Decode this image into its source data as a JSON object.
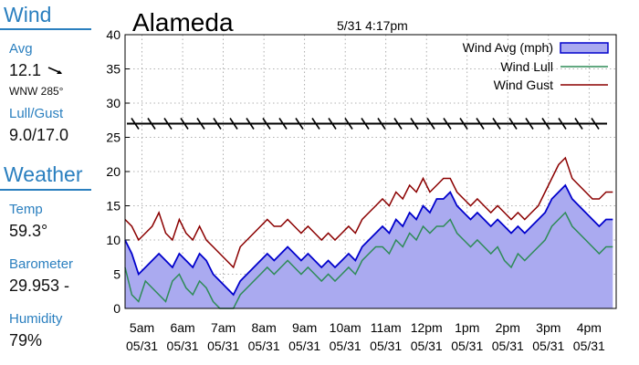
{
  "sidebar": {
    "wind_title": "Wind",
    "avg_label": "Avg",
    "avg_value": "12.1",
    "direction": "WNW 285°",
    "lullgust_label": "Lull/Gust",
    "lullgust_value": "9.0/17.0",
    "weather_title": "Weather",
    "temp_label": "Temp",
    "temp_value": "59.3°",
    "baro_label": "Barometer",
    "baro_value": "29.953 -",
    "humidity_label": "Humidity",
    "humidity_value": "79%"
  },
  "chart_data": {
    "type": "area",
    "title": "Alameda",
    "subtitle": "5/31 4:17pm",
    "xlabel": "",
    "ylabel": "",
    "ylim": [
      0,
      40
    ],
    "yticks": [
      0,
      5,
      10,
      15,
      20,
      25,
      30,
      35,
      40
    ],
    "x_range": [
      "4:35am",
      "4:40pm"
    ],
    "grid": true,
    "legend_position": "top-right",
    "x_ticks": [
      {
        "time": "5am",
        "date": "05/31"
      },
      {
        "time": "6am",
        "date": "05/31"
      },
      {
        "time": "7am",
        "date": "05/31"
      },
      {
        "time": "8am",
        "date": "05/31"
      },
      {
        "time": "9am",
        "date": "05/31"
      },
      {
        "time": "10am",
        "date": "05/31"
      },
      {
        "time": "11am",
        "date": "05/31"
      },
      {
        "time": "12pm",
        "date": "05/31"
      },
      {
        "time": "1pm",
        "date": "05/31"
      },
      {
        "time": "2pm",
        "date": "05/31"
      },
      {
        "time": "3pm",
        "date": "05/31"
      },
      {
        "time": "4pm",
        "date": "05/31"
      }
    ],
    "x_times": [
      "4:35am",
      "4:45am",
      "4:55am",
      "5:05am",
      "5:15am",
      "5:25am",
      "5:35am",
      "5:45am",
      "5:55am",
      "6:05am",
      "6:15am",
      "6:25am",
      "6:35am",
      "6:45am",
      "6:55am",
      "7:05am",
      "7:15am",
      "7:25am",
      "7:35am",
      "7:45am",
      "7:55am",
      "8:05am",
      "8:15am",
      "8:25am",
      "8:35am",
      "8:45am",
      "8:55am",
      "9:05am",
      "9:15am",
      "9:25am",
      "9:35am",
      "9:45am",
      "9:55am",
      "10:05am",
      "10:15am",
      "10:25am",
      "10:35am",
      "10:45am",
      "10:55am",
      "11:05am",
      "11:15am",
      "11:25am",
      "11:35am",
      "11:45am",
      "11:55am",
      "12:05pm",
      "12:15pm",
      "12:25pm",
      "12:35pm",
      "12:45pm",
      "12:55pm",
      "1:05pm",
      "1:15pm",
      "1:25pm",
      "1:35pm",
      "1:45pm",
      "1:55pm",
      "2:05pm",
      "2:15pm",
      "2:25pm",
      "2:35pm",
      "2:45pm",
      "2:55pm",
      "3:05pm",
      "3:15pm",
      "3:25pm",
      "3:35pm",
      "3:45pm",
      "3:55pm",
      "4:05pm",
      "4:15pm",
      "4:25pm",
      "4:35pm"
    ],
    "series": [
      {
        "name": "Wind Avg (mph)",
        "kind": "area",
        "color": "#0000cc",
        "fill": "#aaaaf0",
        "values": [
          10,
          8,
          5,
          6,
          7,
          8,
          7,
          6,
          8,
          7,
          6,
          8,
          7,
          5,
          4,
          3,
          2,
          4,
          5,
          6,
          7,
          8,
          7,
          8,
          9,
          8,
          7,
          8,
          7,
          6,
          7,
          6,
          7,
          8,
          7,
          9,
          10,
          11,
          12,
          11,
          13,
          12,
          14,
          13,
          15,
          14,
          16,
          16,
          17,
          15,
          14,
          13,
          14,
          13,
          12,
          13,
          12,
          11,
          12,
          11,
          12,
          13,
          14,
          16,
          17,
          18,
          16,
          15,
          14,
          13,
          12,
          13,
          13
        ]
      },
      {
        "name": "Wind Lull",
        "kind": "line",
        "color": "#2e8b57",
        "values": [
          6,
          2,
          1,
          4,
          3,
          2,
          1,
          4,
          5,
          3,
          2,
          4,
          3,
          1,
          0,
          0,
          0,
          2,
          3,
          4,
          5,
          6,
          5,
          6,
          7,
          6,
          5,
          6,
          5,
          4,
          5,
          4,
          5,
          6,
          5,
          7,
          8,
          9,
          9,
          8,
          10,
          9,
          11,
          10,
          12,
          11,
          12,
          12,
          13,
          11,
          10,
          9,
          10,
          9,
          8,
          9,
          7,
          6,
          8,
          7,
          8,
          9,
          10,
          12,
          13,
          14,
          12,
          11,
          10,
          9,
          8,
          9,
          9
        ]
      },
      {
        "name": "Wind Gust",
        "kind": "line",
        "color": "#8b0000",
        "values": [
          13,
          12,
          10,
          11,
          12,
          14,
          11,
          10,
          13,
          11,
          10,
          12,
          10,
          9,
          8,
          7,
          6,
          9,
          10,
          11,
          12,
          13,
          12,
          12,
          13,
          12,
          11,
          12,
          11,
          10,
          11,
          10,
          11,
          12,
          11,
          13,
          14,
          15,
          16,
          15,
          17,
          16,
          18,
          17,
          19,
          17,
          18,
          19,
          19,
          17,
          16,
          15,
          16,
          15,
          14,
          15,
          14,
          13,
          14,
          13,
          14,
          15,
          17,
          19,
          21,
          22,
          19,
          18,
          17,
          16,
          16,
          17,
          17
        ]
      }
    ],
    "direction_arrows_at": 27
  }
}
